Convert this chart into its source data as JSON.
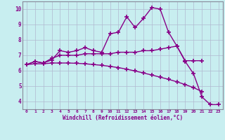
{
  "x": [
    0,
    1,
    2,
    3,
    4,
    5,
    6,
    7,
    8,
    9,
    10,
    11,
    12,
    13,
    14,
    15,
    16,
    17,
    18,
    19,
    20,
    21,
    22,
    23
  ],
  "line1": [
    6.4,
    6.6,
    6.5,
    6.7,
    7.3,
    7.2,
    7.3,
    7.5,
    7.3,
    7.2,
    8.4,
    8.5,
    9.5,
    8.8,
    9.4,
    10.1,
    10.0,
    8.5,
    7.6,
    6.6,
    5.8,
    4.3,
    3.8,
    3.8
  ],
  "line2": [
    6.4,
    6.6,
    6.5,
    6.8,
    7.0,
    7.0,
    7.0,
    7.1,
    7.1,
    7.1,
    7.1,
    7.2,
    7.2,
    7.2,
    7.3,
    7.3,
    7.4,
    7.5,
    7.6,
    6.65,
    6.65,
    6.65,
    null,
    null
  ],
  "line3": [
    6.4,
    6.45,
    6.45,
    6.5,
    6.5,
    6.5,
    6.48,
    6.45,
    6.4,
    6.35,
    6.28,
    6.2,
    6.1,
    5.98,
    5.85,
    5.72,
    5.58,
    5.44,
    5.28,
    5.1,
    4.9,
    4.65,
    null,
    null
  ],
  "background_color": "#c8eef0",
  "grid_color": "#b0b8d0",
  "line_color": "#880088",
  "ylim": [
    3.5,
    10.5
  ],
  "xlim": [
    -0.5,
    23.5
  ],
  "xlabel": "Windchill (Refroidissement éolien,°C)",
  "yticks": [
    4,
    5,
    6,
    7,
    8,
    9,
    10
  ],
  "xticks": [
    0,
    1,
    2,
    3,
    4,
    5,
    6,
    7,
    8,
    9,
    10,
    11,
    12,
    13,
    14,
    15,
    16,
    17,
    18,
    19,
    20,
    21,
    22,
    23
  ],
  "marker": "+",
  "markersize": 4,
  "linewidth": 1.0
}
